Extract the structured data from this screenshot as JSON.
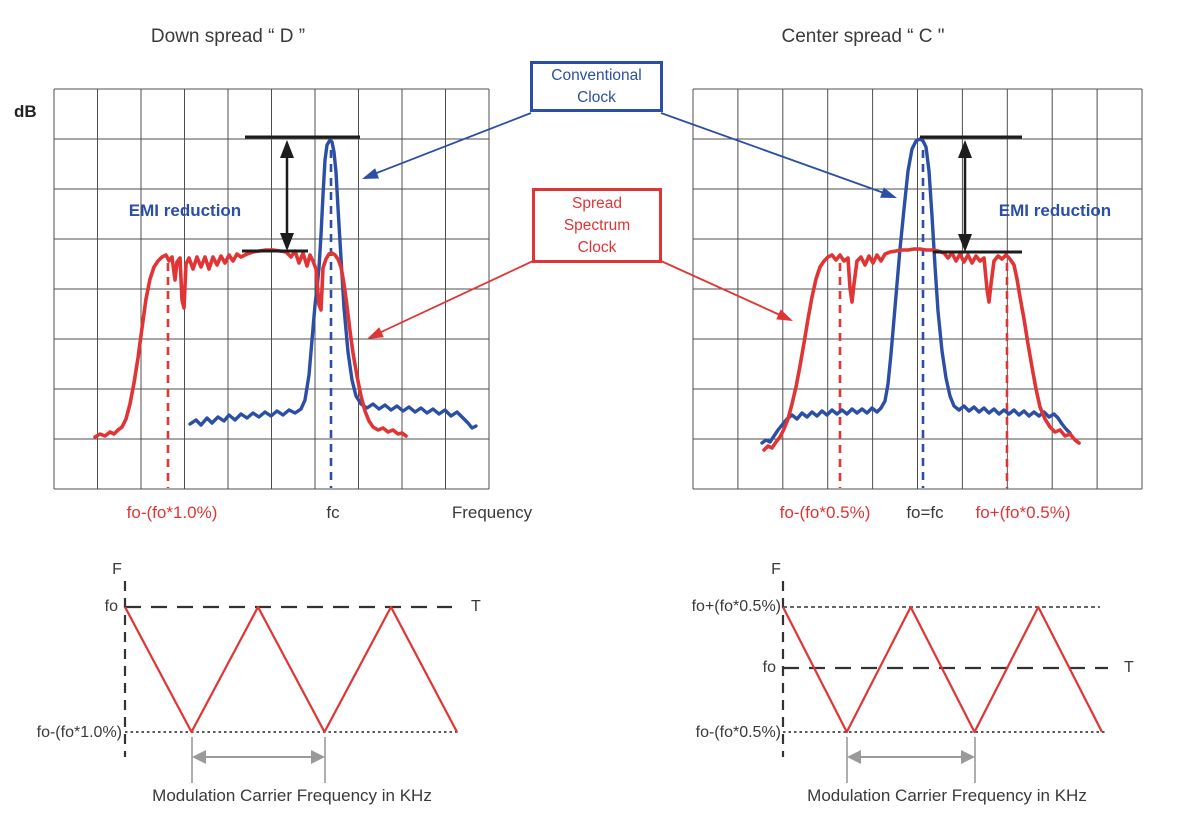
{
  "colors": {
    "blue": "#2b4fa5",
    "red": "#e13434",
    "dark": "#3a3a3a",
    "black": "#1c1c1c",
    "grid": "#4f4f4f",
    "gray": "#9a9a9a"
  },
  "titles": {
    "left": "Down spread “ D ”",
    "right": "Center spread “ C \""
  },
  "spectrum_left": {
    "db_label": "dB",
    "emi": "EMI reduction",
    "x_spread": "fo-(fo*1.0%)",
    "x_center": "fc",
    "x_axis": "Frequency"
  },
  "spectrum_right": {
    "emi": "EMI reduction",
    "x_lower": "fo-(fo*0.5%)",
    "x_center": "fo=fc",
    "x_upper": "fo+(fo*0.5%)"
  },
  "callout_conventional": {
    "line1": "Conventional",
    "line2": "Clock"
  },
  "callout_ssc": {
    "line1": "Spread",
    "line2": "Spectrum",
    "line3": "Clock"
  },
  "mod_left": {
    "y_axis": "F",
    "upper": "fo",
    "time_axis": "T",
    "lower": "fo-(fo*1.0%)",
    "caption": "Modulation Carrier Frequency in KHz"
  },
  "mod_right": {
    "y_axis": "F",
    "upper": "fo+(fo*0.5%)",
    "mid": "fo",
    "time_axis": "T",
    "lower": "fo-(fo*0.5%)",
    "caption": "Modulation Carrier Frequency in KHz"
  }
}
